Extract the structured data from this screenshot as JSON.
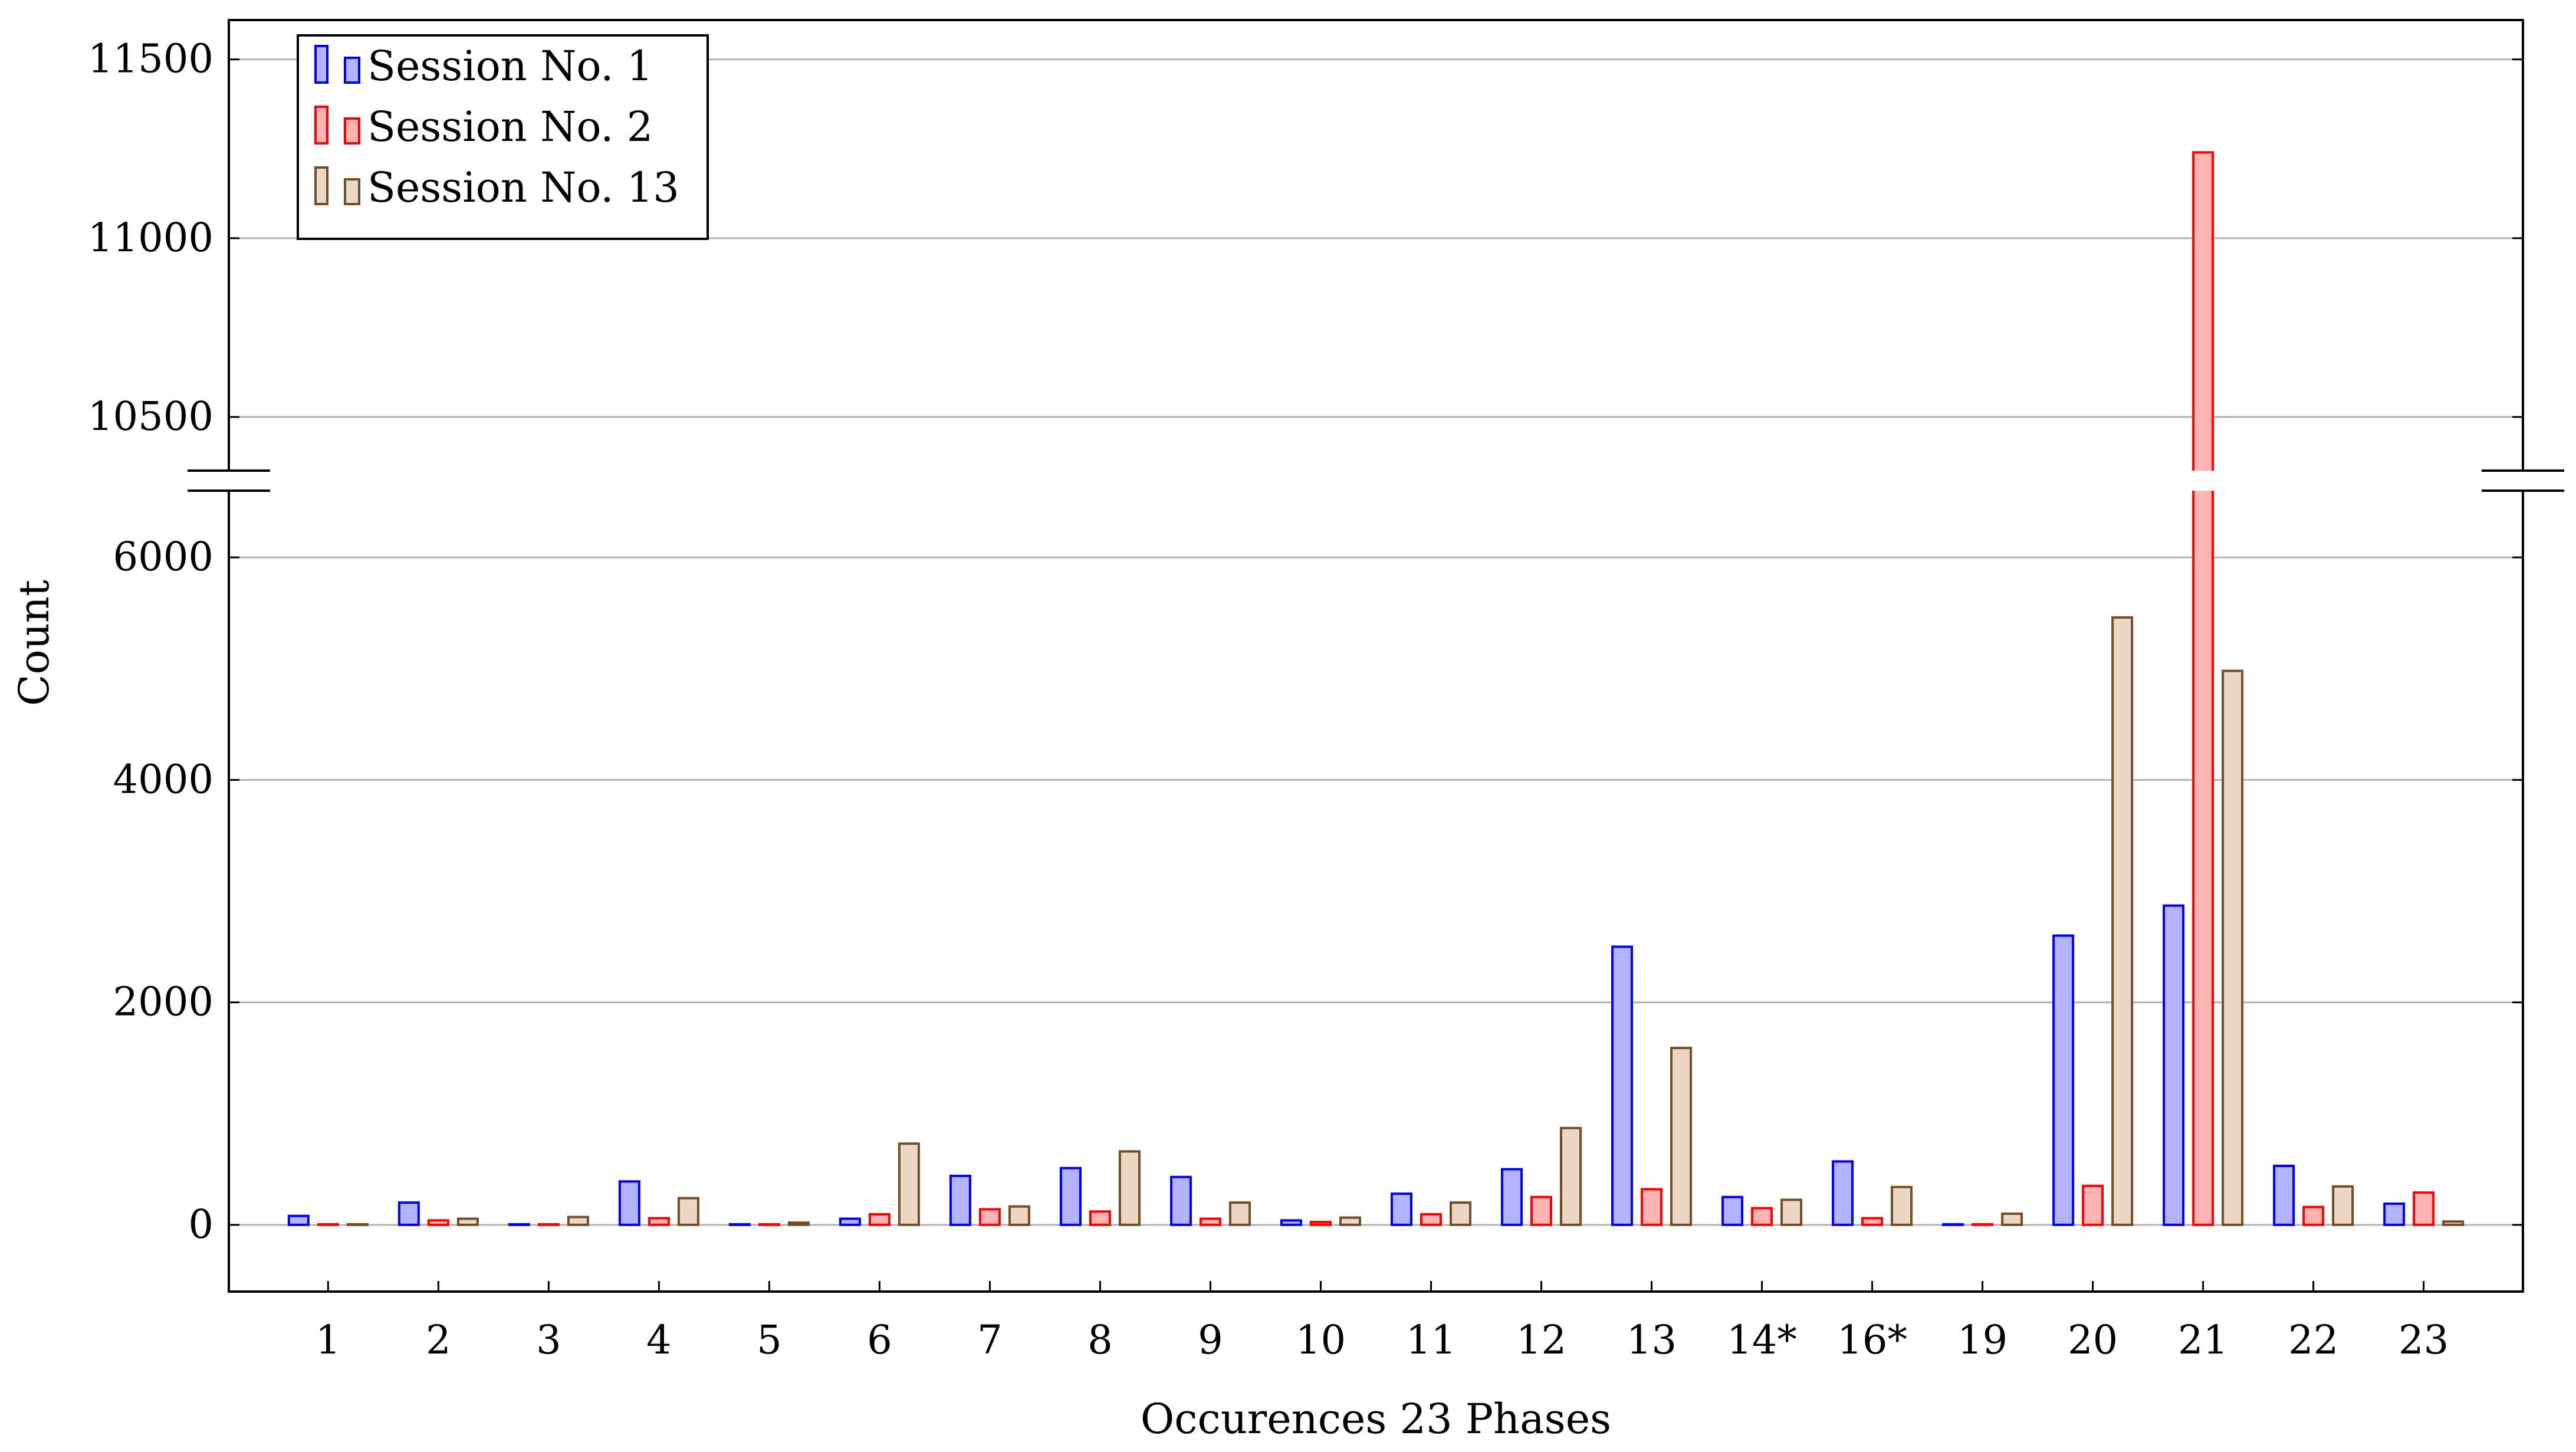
{
  "chart_data": {
    "type": "bar",
    "xlabel": "Occurences 23 Phases",
    "ylabel": "Count",
    "categories": [
      "1",
      "2",
      "3",
      "4",
      "5",
      "6",
      "7",
      "8",
      "9",
      "10",
      "11",
      "12",
      "13",
      "14*",
      "16*",
      "19",
      "20",
      "21",
      "22",
      "23"
    ],
    "series": [
      {
        "name": "Session No. 1",
        "color": "#0000ff",
        "fill": "#b3b3ff",
        "values": [
          80,
          200,
          5,
          390,
          5,
          55,
          440,
          510,
          430,
          40,
          280,
          500,
          2500,
          250,
          570,
          5,
          2600,
          2870,
          530,
          190
        ]
      },
      {
        "name": "Session No. 2",
        "color": "#ff0000",
        "fill": "#ffb3b3",
        "values": [
          5,
          40,
          5,
          60,
          5,
          95,
          140,
          120,
          55,
          25,
          95,
          250,
          320,
          150,
          60,
          5,
          350,
          11240,
          160,
          290
        ]
      },
      {
        "name": "Session No. 13",
        "color": "#734d26",
        "fill": "#ecd6c4",
        "values": [
          5,
          55,
          70,
          240,
          20,
          730,
          165,
          660,
          200,
          65,
          200,
          870,
          1590,
          225,
          340,
          100,
          5460,
          4980,
          345,
          30
        ]
      }
    ],
    "y_axis_lower": {
      "range": [
        -600,
        6600
      ],
      "ticks": [
        "0",
        "2000",
        "4000",
        "6000"
      ],
      "tick_values": [
        0,
        2000,
        4000,
        6000
      ]
    },
    "y_axis_upper": {
      "range": [
        10350,
        11610
      ],
      "ticks": [
        "10500",
        "11000",
        "11500"
      ],
      "tick_values": [
        10500,
        11000,
        11500
      ]
    },
    "axis_break": true,
    "grid": "horizontal",
    "legend_position": "top-left"
  }
}
